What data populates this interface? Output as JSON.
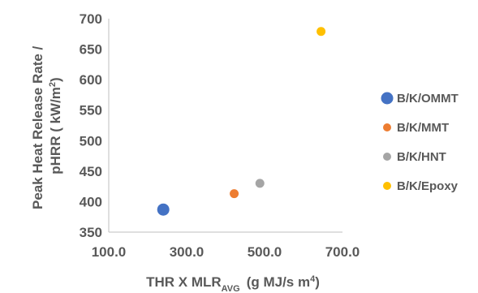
{
  "chart_data": {
    "type": "scatter",
    "title": "",
    "xlabel": {
      "main": "THR X MLR",
      "sub": "AVG",
      "tail": "(g MJ/s m",
      "sup": "4",
      "close": ")"
    },
    "ylabel": {
      "line1": "Peak Heat Release Rate /",
      "line2_main": "pHRR ( kW/m",
      "line2_sup": "2",
      "line2_close": ")"
    },
    "xlim": [
      100,
      700
    ],
    "ylim": [
      350,
      700
    ],
    "x_ticks": [
      "100.0",
      "300.0",
      "500.0",
      "700.0"
    ],
    "y_ticks": [
      "350",
      "400",
      "450",
      "500",
      "550",
      "600",
      "650",
      "700"
    ],
    "grid": false,
    "legend_position": "right",
    "series": [
      {
        "name": "B/K/OMMT",
        "color": "#4472C4",
        "marker": "large",
        "points": [
          {
            "x": 240,
            "y": 387
          }
        ]
      },
      {
        "name": "B/K/MMT",
        "color": "#ED7D31",
        "marker": "small",
        "points": [
          {
            "x": 422,
            "y": 413
          }
        ]
      },
      {
        "name": "B/K/HNT",
        "color": "#A5A5A5",
        "marker": "small",
        "points": [
          {
            "x": 488,
            "y": 430
          }
        ]
      },
      {
        "name": "B/K/Epoxy",
        "color": "#FFC000",
        "marker": "small",
        "points": [
          {
            "x": 645,
            "y": 679
          }
        ]
      }
    ]
  }
}
